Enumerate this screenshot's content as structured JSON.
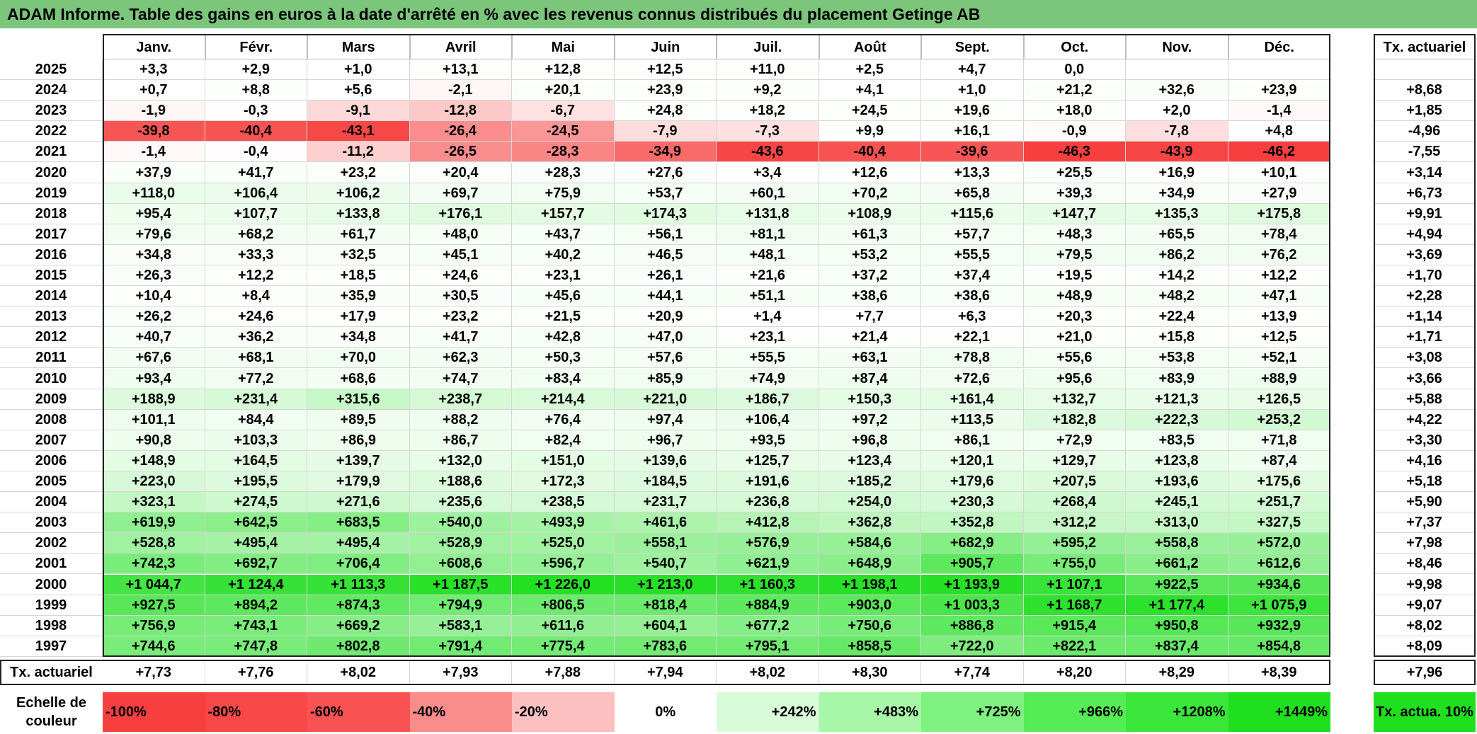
{
  "title": "ADAM Informe. Table des gains en euros à la date d'arrêté en % avec les revenus connus distribués du placement Getinge AB",
  "months": [
    "Janv.",
    "Févr.",
    "Mars",
    "Avril",
    "Mai",
    "Juin",
    "Juil.",
    "Août",
    "Sept.",
    "Oct.",
    "Nov.",
    "Déc."
  ],
  "rate_header": "Tx. actuariel",
  "years": [
    "2025",
    "2024",
    "2023",
    "2022",
    "2021",
    "2020",
    "2019",
    "2018",
    "2017",
    "2016",
    "2015",
    "2014",
    "2013",
    "2012",
    "2011",
    "2010",
    "2009",
    "2008",
    "2007",
    "2006",
    "2005",
    "2004",
    "2003",
    "2002",
    "2001",
    "2000",
    "1999",
    "1998",
    "1997"
  ],
  "rows": [
    [
      "+3,3",
      "+2,9",
      "+1,0",
      "+13,1",
      "+12,8",
      "+12,5",
      "+11,0",
      "+2,5",
      "+4,7",
      "0,0",
      "",
      ""
    ],
    [
      "+0,7",
      "+8,8",
      "+5,6",
      "-2,1",
      "+20,1",
      "+23,9",
      "+9,2",
      "+4,1",
      "+1,0",
      "+21,2",
      "+32,6",
      "+23,9"
    ],
    [
      "-1,9",
      "-0,3",
      "-9,1",
      "-12,8",
      "-6,7",
      "+24,8",
      "+18,2",
      "+24,5",
      "+19,6",
      "+18,0",
      "+2,0",
      "-1,4"
    ],
    [
      "-39,8",
      "-40,4",
      "-43,1",
      "-26,4",
      "-24,5",
      "-7,9",
      "-7,3",
      "+9,9",
      "+16,1",
      "-0,9",
      "-7,8",
      "+4,8"
    ],
    [
      "-1,4",
      "-0,4",
      "-11,2",
      "-26,5",
      "-28,3",
      "-34,9",
      "-43,6",
      "-40,4",
      "-39,6",
      "-46,3",
      "-43,9",
      "-46,2"
    ],
    [
      "+37,9",
      "+41,7",
      "+23,2",
      "+20,4",
      "+28,3",
      "+27,6",
      "+3,4",
      "+12,6",
      "+13,3",
      "+25,5",
      "+16,9",
      "+10,1"
    ],
    [
      "+118,0",
      "+106,4",
      "+106,2",
      "+69,7",
      "+75,9",
      "+53,7",
      "+60,1",
      "+70,2",
      "+65,8",
      "+39,3",
      "+34,9",
      "+27,9"
    ],
    [
      "+95,4",
      "+107,7",
      "+133,8",
      "+176,1",
      "+157,7",
      "+174,3",
      "+131,8",
      "+108,9",
      "+115,6",
      "+147,7",
      "+135,3",
      "+175,8"
    ],
    [
      "+79,6",
      "+68,2",
      "+61,7",
      "+48,0",
      "+43,7",
      "+56,1",
      "+81,1",
      "+61,3",
      "+57,7",
      "+48,3",
      "+65,5",
      "+78,4"
    ],
    [
      "+34,8",
      "+33,3",
      "+32,5",
      "+45,1",
      "+40,2",
      "+46,5",
      "+48,1",
      "+53,2",
      "+55,5",
      "+79,5",
      "+86,2",
      "+76,2"
    ],
    [
      "+26,3",
      "+12,2",
      "+18,5",
      "+24,6",
      "+23,1",
      "+26,1",
      "+21,6",
      "+37,2",
      "+37,4",
      "+19,5",
      "+14,2",
      "+12,2"
    ],
    [
      "+10,4",
      "+8,4",
      "+35,9",
      "+30,5",
      "+45,6",
      "+44,1",
      "+51,1",
      "+38,6",
      "+38,6",
      "+48,9",
      "+48,2",
      "+47,1"
    ],
    [
      "+26,2",
      "+24,6",
      "+17,9",
      "+23,2",
      "+21,5",
      "+20,9",
      "+1,4",
      "+7,7",
      "+6,3",
      "+20,3",
      "+22,4",
      "+13,9"
    ],
    [
      "+40,7",
      "+36,2",
      "+34,8",
      "+41,7",
      "+42,8",
      "+47,0",
      "+23,1",
      "+21,4",
      "+22,1",
      "+21,0",
      "+15,8",
      "+12,5"
    ],
    [
      "+67,6",
      "+68,1",
      "+70,0",
      "+62,3",
      "+50,3",
      "+57,6",
      "+55,5",
      "+63,1",
      "+78,8",
      "+55,6",
      "+53,8",
      "+52,1"
    ],
    [
      "+93,4",
      "+77,2",
      "+68,6",
      "+74,7",
      "+83,4",
      "+85,9",
      "+74,9",
      "+87,4",
      "+72,6",
      "+95,6",
      "+83,9",
      "+88,9"
    ],
    [
      "+188,9",
      "+231,4",
      "+315,6",
      "+238,7",
      "+214,4",
      "+221,0",
      "+186,7",
      "+150,3",
      "+161,4",
      "+132,7",
      "+121,3",
      "+126,5"
    ],
    [
      "+101,1",
      "+84,4",
      "+89,5",
      "+88,2",
      "+76,4",
      "+97,4",
      "+106,4",
      "+97,2",
      "+113,5",
      "+182,8",
      "+222,3",
      "+253,2"
    ],
    [
      "+90,8",
      "+103,3",
      "+86,9",
      "+86,7",
      "+82,4",
      "+96,7",
      "+93,5",
      "+96,8",
      "+86,1",
      "+72,9",
      "+83,5",
      "+71,8"
    ],
    [
      "+148,9",
      "+164,5",
      "+139,7",
      "+132,0",
      "+151,0",
      "+139,6",
      "+125,7",
      "+123,4",
      "+120,1",
      "+129,7",
      "+123,8",
      "+87,4"
    ],
    [
      "+223,0",
      "+195,5",
      "+179,9",
      "+188,6",
      "+172,3",
      "+184,5",
      "+191,6",
      "+185,2",
      "+179,6",
      "+207,5",
      "+193,6",
      "+175,6"
    ],
    [
      "+323,1",
      "+274,5",
      "+271,6",
      "+235,6",
      "+238,5",
      "+231,7",
      "+236,8",
      "+254,0",
      "+230,3",
      "+268,4",
      "+245,1",
      "+251,7"
    ],
    [
      "+619,9",
      "+642,5",
      "+683,5",
      "+540,0",
      "+493,9",
      "+461,6",
      "+412,8",
      "+362,8",
      "+352,8",
      "+312,2",
      "+313,0",
      "+327,5"
    ],
    [
      "+528,8",
      "+495,4",
      "+495,4",
      "+528,9",
      "+525,0",
      "+558,1",
      "+576,9",
      "+584,6",
      "+682,9",
      "+595,2",
      "+558,8",
      "+572,0"
    ],
    [
      "+742,3",
      "+692,7",
      "+706,4",
      "+608,6",
      "+596,7",
      "+540,7",
      "+621,9",
      "+648,9",
      "+905,7",
      "+755,0",
      "+661,2",
      "+612,6"
    ],
    [
      "+1 044,7",
      "+1 124,4",
      "+1 113,3",
      "+1 187,5",
      "+1 226,0",
      "+1 213,0",
      "+1 160,3",
      "+1 198,1",
      "+1 193,9",
      "+1 107,1",
      "+922,5",
      "+934,6"
    ],
    [
      "+927,5",
      "+894,2",
      "+874,3",
      "+794,9",
      "+806,5",
      "+818,4",
      "+884,9",
      "+903,0",
      "+1 003,3",
      "+1 168,7",
      "+1 177,4",
      "+1 075,9"
    ],
    [
      "+756,9",
      "+743,1",
      "+669,2",
      "+583,1",
      "+611,6",
      "+604,1",
      "+677,2",
      "+750,6",
      "+886,8",
      "+915,4",
      "+950,8",
      "+932,9"
    ],
    [
      "+744,6",
      "+747,8",
      "+802,8",
      "+791,4",
      "+775,4",
      "+783,6",
      "+795,1",
      "+858,5",
      "+722,0",
      "+822,1",
      "+837,4",
      "+854,8"
    ]
  ],
  "row_rates": [
    "",
    "+8,68",
    "+1,85",
    "-4,96",
    "-7,55",
    "+3,14",
    "+6,73",
    "+9,91",
    "+4,94",
    "+3,69",
    "+1,70",
    "+2,28",
    "+1,14",
    "+1,71",
    "+3,08",
    "+3,66",
    "+5,88",
    "+4,22",
    "+3,30",
    "+4,16",
    "+5,18",
    "+5,90",
    "+7,37",
    "+7,98",
    "+8,46",
    "+9,98",
    "+9,07",
    "+8,02",
    "+8,09"
  ],
  "summary_label": "Tx. actuariel",
  "month_rates": [
    "+7,73",
    "+7,76",
    "+8,02",
    "+7,93",
    "+7,88",
    "+7,94",
    "+8,02",
    "+8,30",
    "+7,74",
    "+8,20",
    "+8,29",
    "+8,39"
  ],
  "overall_rate": "+7,96",
  "legend": {
    "label": "Echelle de couleur",
    "items": [
      {
        "text": "-100%",
        "color": "#f73f3f",
        "align": "left"
      },
      {
        "text": "-80%",
        "color": "#f84848",
        "align": "left"
      },
      {
        "text": "-60%",
        "color": "#f95252",
        "align": "left"
      },
      {
        "text": "-40%",
        "color": "#fb8c8c",
        "align": "left"
      },
      {
        "text": "-20%",
        "color": "#fdc0c0",
        "align": "left"
      },
      {
        "text": "0%",
        "color": "#ffffff",
        "align": "center"
      },
      {
        "text": "+242%",
        "color": "#d8fcd8",
        "align": "right"
      },
      {
        "text": "+483%",
        "color": "#a8f7a8",
        "align": "right"
      },
      {
        "text": "+725%",
        "color": "#7ef17e",
        "align": "right"
      },
      {
        "text": "+966%",
        "color": "#55ec55",
        "align": "right"
      },
      {
        "text": "+1208%",
        "color": "#3ae63a",
        "align": "right"
      },
      {
        "text": "+1449%",
        "color": "#1fdf1f",
        "align": "right"
      }
    ],
    "rate_label": "Tx. actua. 10%",
    "rate_color": "#1fdf1f"
  },
  "colors": {
    "title_bg": "#7cc67c",
    "neg_max": "#f73f3f",
    "pos_max": "#1fdf1f"
  }
}
